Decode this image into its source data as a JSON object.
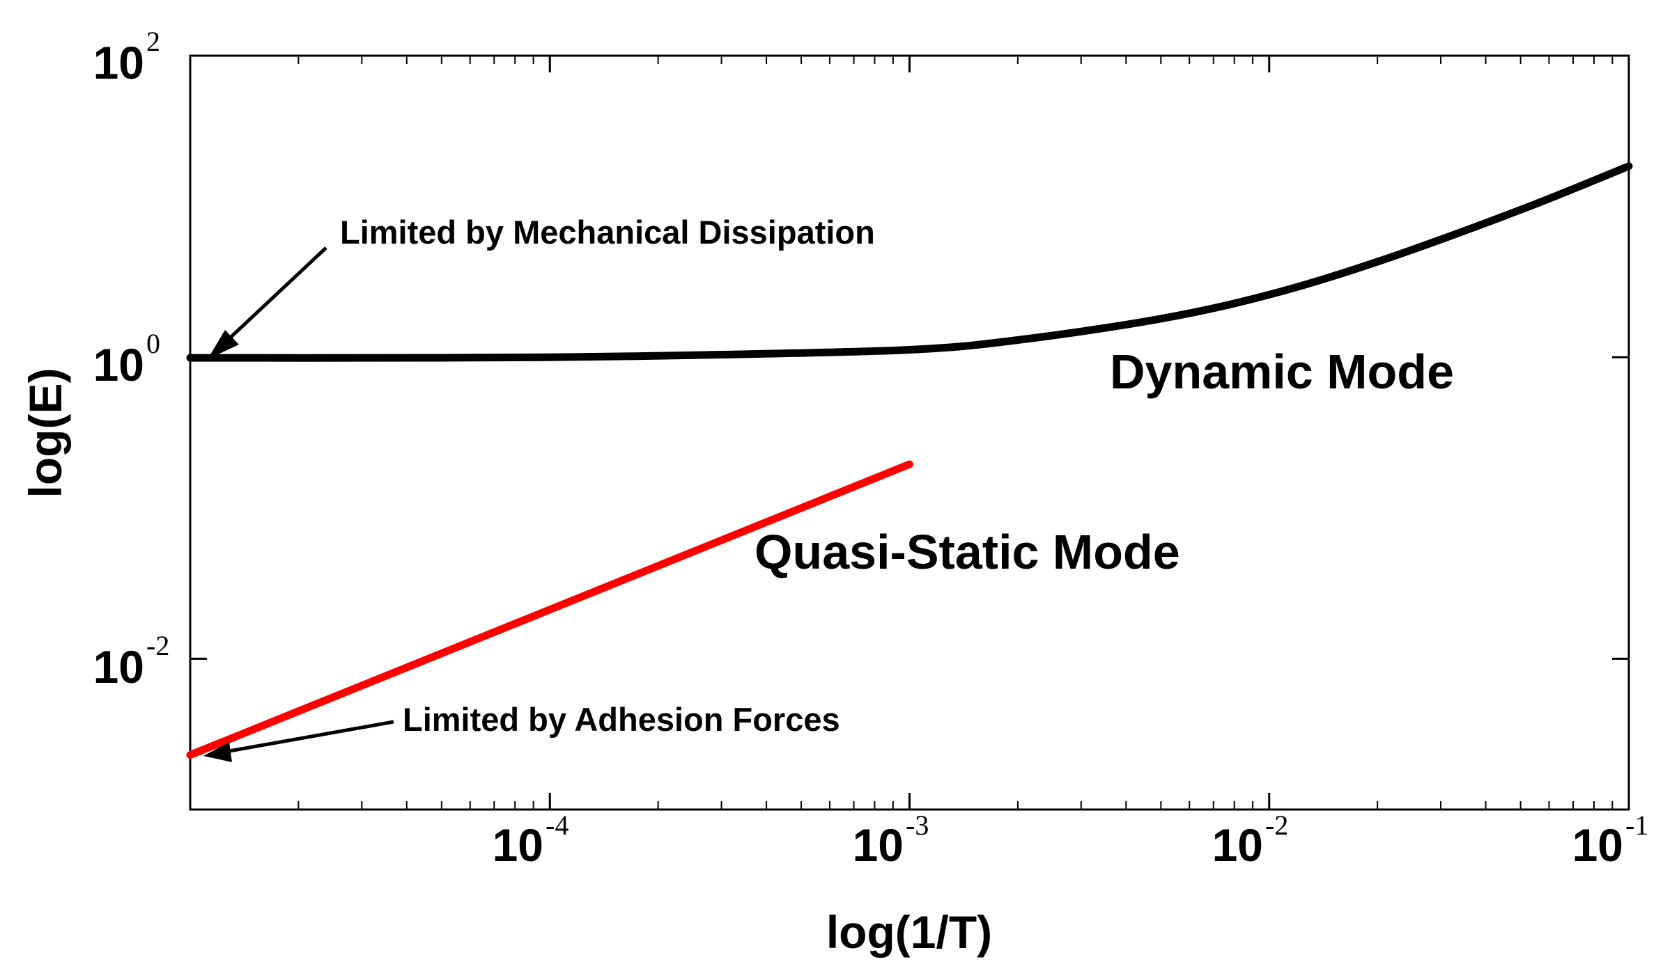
{
  "chart_data": {
    "type": "line",
    "xscale": "log",
    "yscale": "log",
    "xlim": [
      1e-05,
      0.1
    ],
    "ylim": [
      0.001,
      100
    ],
    "xlabel": "log(1/T)",
    "ylabel": "log(E)",
    "x_ticks": [
      {
        "base": "10",
        "exp": "-4"
      },
      {
        "base": "10",
        "exp": "-3"
      },
      {
        "base": "10",
        "exp": "-2"
      },
      {
        "base": "10",
        "exp": "-1"
      }
    ],
    "y_ticks": [
      {
        "base": "10",
        "exp": "2"
      },
      {
        "base": "10",
        "exp": "0"
      },
      {
        "base": "10",
        "exp": "-2"
      }
    ],
    "series": [
      {
        "name": "Dynamic Mode",
        "color": "#000000",
        "x": [
          1e-05,
          3e-05,
          0.0001,
          0.0003,
          0.001,
          0.002,
          0.005,
          0.01,
          0.02,
          0.05,
          0.1
        ],
        "y": [
          0.99,
          0.99,
          1.0,
          1.04,
          1.12,
          1.3,
          1.8,
          2.6,
          4.3,
          9.5,
          18.5
        ]
      },
      {
        "name": "Quasi-Static Mode",
        "color": "#ff0000",
        "x": [
          1e-05,
          0.001
        ],
        "y": [
          0.0023,
          0.195
        ]
      }
    ],
    "annotations": [
      {
        "text": "Limited by Mechanical Dissipation"
      },
      {
        "text": "Limited by Adhesion Forces"
      },
      {
        "text": "Dynamic Mode"
      },
      {
        "text": "Quasi-Static Mode"
      }
    ]
  }
}
